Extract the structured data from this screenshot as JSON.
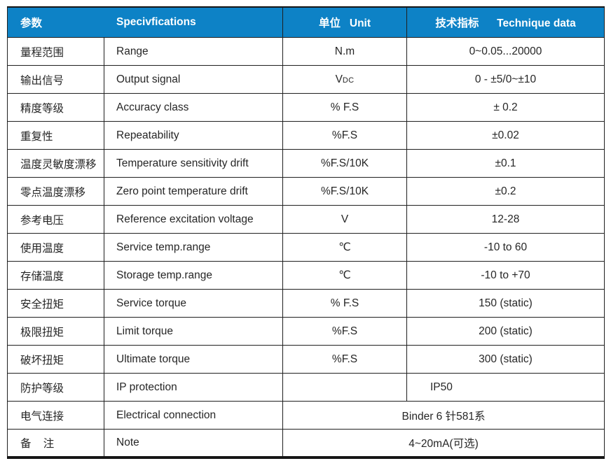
{
  "table": {
    "colors": {
      "header_bg": "#0d82c6",
      "header_text": "#ffffff",
      "body_text": "#262626",
      "border": "#1f1f1f"
    },
    "header": {
      "param_cn": "参数",
      "param_en": "Specivfications",
      "unit": "单位   Unit",
      "data": "技术指标      Technique data"
    },
    "rows": [
      {
        "cn": "量程范围",
        "en": "Range",
        "unit": "N.m",
        "value": "0~0.05...20000"
      },
      {
        "cn": "输出信号",
        "en": "Output signal",
        "unit": "V",
        "unit_sub": "DC",
        "value": "0 - ±5/0~±10"
      },
      {
        "cn": "精度等级",
        "en": "Accuracy class",
        "unit": "% F.S",
        "value": "± 0.2"
      },
      {
        "cn": "重复性",
        "en": "Repeatability",
        "unit": "%F.S",
        "value": "±0.02"
      },
      {
        "cn": "温度灵敏度漂移",
        "en": "Temperature sensitivity drift",
        "unit": "%F.S/10K",
        "value": "±0.1"
      },
      {
        "cn": "零点温度漂移",
        "en": "Zero point temperature drift",
        "unit": "%F.S/10K",
        "value": "±0.2"
      },
      {
        "cn": "参考电压",
        "en": "Reference excitation voltage",
        "unit": "V",
        "value": "12-28"
      },
      {
        "cn": "使用温度",
        "en": "Service temp.range",
        "unit": "℃",
        "value": "-10 to 60"
      },
      {
        "cn": "存储温度",
        "en": "Storage temp.range",
        "unit": "℃",
        "value": "-10 to +70"
      },
      {
        "cn": "安全扭矩",
        "en": "Service torque",
        "unit": "% F.S",
        "value": "150 (static)"
      },
      {
        "cn": "极限扭矩",
        "en": "Limit torque",
        "unit": "%F.S",
        "value": "200 (static)"
      },
      {
        "cn": "破坏扭矩",
        "en": "Ultimate torque",
        "unit": "%F.S",
        "value": "300 (static)"
      },
      {
        "cn": "防护等级",
        "en": "IP protection",
        "unit": "",
        "value": "IP50"
      },
      {
        "cn": "电气连接",
        "en": "Electrical connection",
        "merged": "Binder 6 针581系"
      },
      {
        "cn": "备    注",
        "en": "Note",
        "merged": "4~20mA(可选)"
      }
    ]
  }
}
